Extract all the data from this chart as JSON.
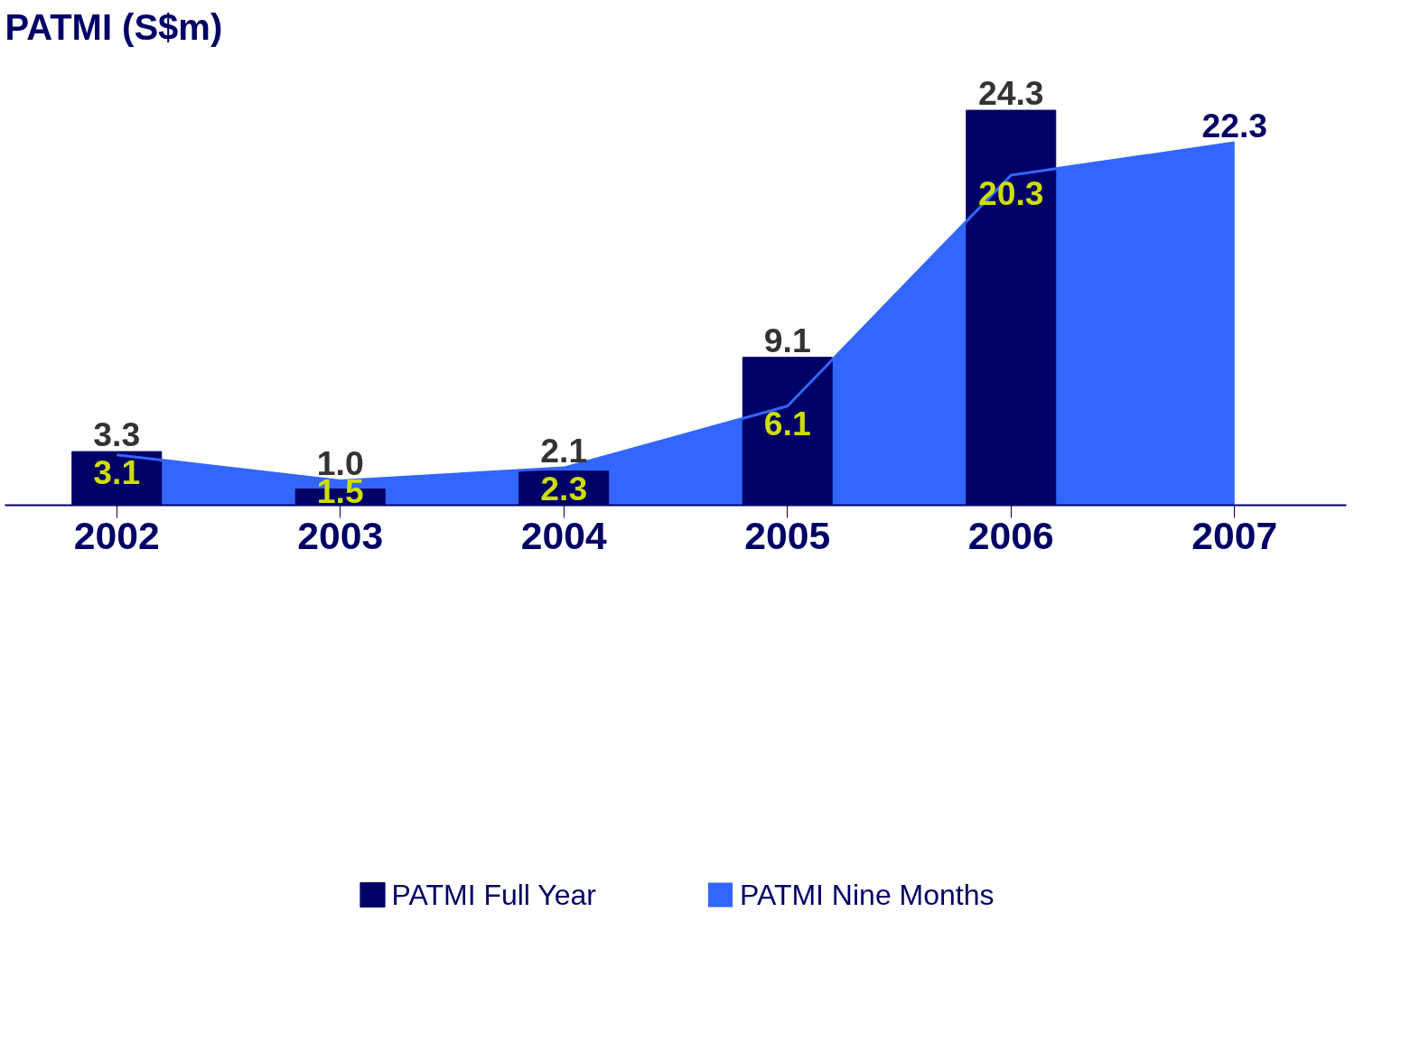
{
  "chart_data": {
    "type": "bar",
    "title": "PATMI (S$m)",
    "categories": [
      "2002",
      "2003",
      "2004",
      "2005",
      "2006",
      "2007"
    ],
    "series": [
      {
        "name": "PATMI Nine Months",
        "type": "area",
        "color": "#3366ff",
        "values": [
          3.1,
          1.5,
          2.3,
          6.1,
          20.3,
          22.3
        ],
        "value_labels": [
          "3.1",
          "1.5",
          "2.3",
          "6.1",
          "20.3",
          "22.3"
        ]
      },
      {
        "name": "PATMI Full Year",
        "color": "#000066",
        "values": [
          3.3,
          1.0,
          2.1,
          9.1,
          24.3,
          null
        ],
        "value_labels": [
          "3.3",
          "1.0",
          "2.1",
          "9.1",
          "24.3",
          null
        ]
      }
    ],
    "grid": false,
    "legend": "bottom",
    "tick_labels": "x"
  }
}
